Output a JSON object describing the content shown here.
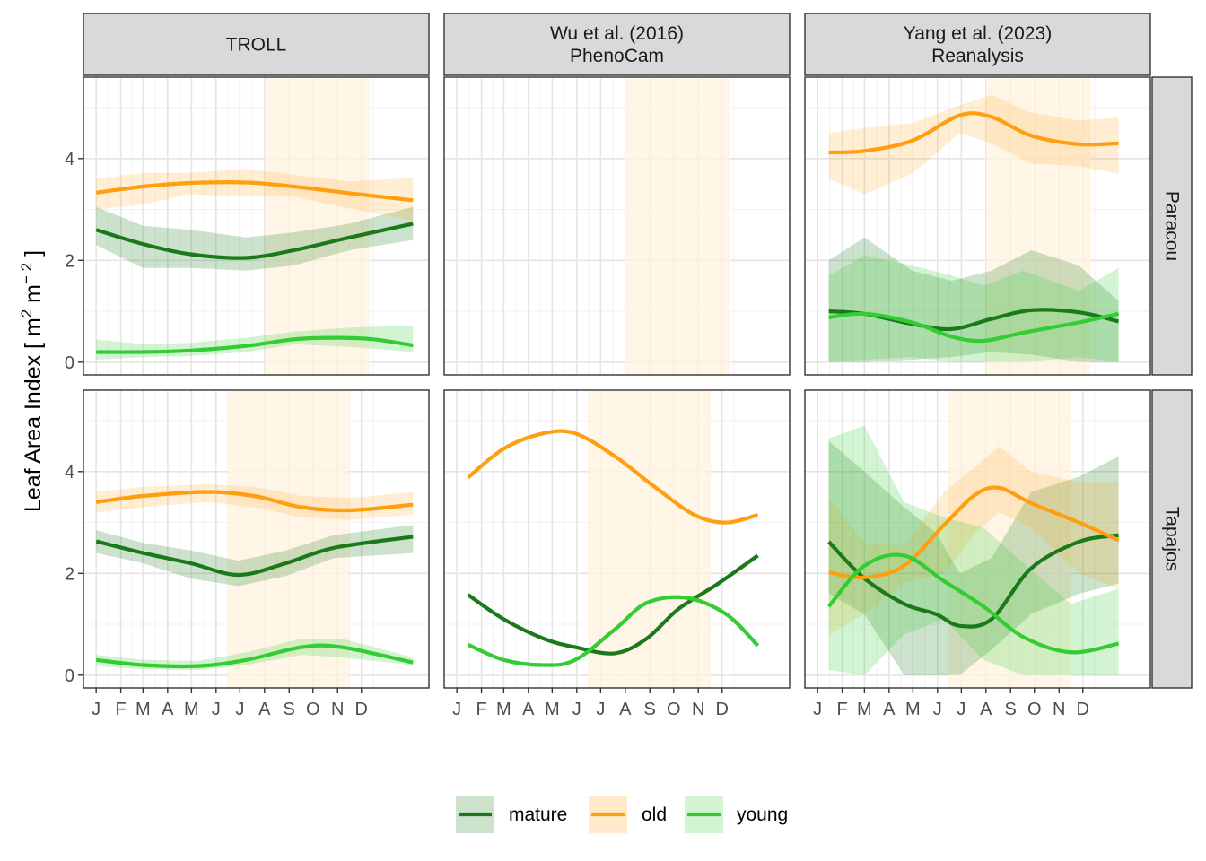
{
  "chart_data": {
    "type": "line",
    "ylabel": "Leaf Area Index [ m² m⁻² ]",
    "ylabel_parts": {
      "main": "Leaf Area Index [ m",
      "sup1": "2",
      "mid": " m",
      "sup2": "− 2",
      "end": " ]"
    },
    "xlabel": "",
    "ylim": [
      -0.25,
      5.6
    ],
    "y_ticks": [
      0,
      2,
      4
    ],
    "x_ticks": [
      "J",
      "F",
      "M",
      "A",
      "M",
      "J",
      "J",
      "A",
      "S",
      "O",
      "N",
      "D"
    ],
    "x_tick_days": [
      1,
      32,
      60,
      91,
      121,
      152,
      182,
      213,
      244,
      274,
      305,
      335
    ],
    "xlim": [
      -15,
      420
    ],
    "grid": true,
    "legend_position": "bottom",
    "columns": [
      {
        "lines": [
          "TROLL"
        ]
      },
      {
        "lines": [
          "Wu et al. (2016)",
          "PhenoCam"
        ]
      },
      {
        "lines": [
          "Yang et al. (2023)",
          "Reanalysis"
        ]
      }
    ],
    "rows": [
      "Paracou",
      "Tapajos"
    ],
    "series": [
      {
        "name": "mature",
        "color": "#1a7a1a"
      },
      {
        "name": "old",
        "color": "#ff9f0f"
      },
      {
        "name": "young",
        "color": "#33cc33"
      }
    ],
    "panels": [
      {
        "row": 0,
        "col": 0,
        "dry_season": [
          213,
          345
        ],
        "lines": {
          "old": [
            [
              1,
              3.33
            ],
            [
              60,
              3.45
            ],
            [
              120,
              3.52
            ],
            [
              190,
              3.53
            ],
            [
              250,
              3.45
            ],
            [
              320,
              3.32
            ],
            [
              400,
              3.18
            ]
          ],
          "mature": [
            [
              1,
              2.6
            ],
            [
              60,
              2.32
            ],
            [
              120,
              2.12
            ],
            [
              190,
              2.05
            ],
            [
              250,
              2.2
            ],
            [
              320,
              2.45
            ],
            [
              400,
              2.72
            ]
          ],
          "young": [
            [
              1,
              0.2
            ],
            [
              60,
              0.2
            ],
            [
              120,
              0.23
            ],
            [
              190,
              0.32
            ],
            [
              250,
              0.45
            ],
            [
              300,
              0.48
            ],
            [
              350,
              0.45
            ],
            [
              400,
              0.33
            ]
          ]
        },
        "ribbons": {
          "old": [
            [
              1,
              3.0,
              3.6
            ],
            [
              60,
              3.1,
              3.72
            ],
            [
              120,
              3.3,
              3.72
            ],
            [
              190,
              3.25,
              3.8
            ],
            [
              250,
              3.25,
              3.68
            ],
            [
              320,
              3.02,
              3.55
            ],
            [
              400,
              2.78,
              3.62
            ]
          ],
          "mature": [
            [
              1,
              2.3,
              3.05
            ],
            [
              60,
              1.85,
              2.68
            ],
            [
              120,
              1.85,
              2.6
            ],
            [
              190,
              1.8,
              2.45
            ],
            [
              250,
              1.9,
              2.55
            ],
            [
              320,
              2.2,
              2.72
            ],
            [
              400,
              2.4,
              3.05
            ]
          ],
          "young": [
            [
              1,
              0.05,
              0.45
            ],
            [
              60,
              0.1,
              0.35
            ],
            [
              120,
              0.12,
              0.38
            ],
            [
              190,
              0.2,
              0.48
            ],
            [
              250,
              0.35,
              0.6
            ],
            [
              320,
              0.3,
              0.68
            ],
            [
              400,
              0.2,
              0.72
            ]
          ]
        }
      },
      {
        "row": 0,
        "col": 1,
        "dry_season": [
          213,
          345
        ],
        "lines": {},
        "ribbons": {}
      },
      {
        "row": 0,
        "col": 2,
        "dry_season": [
          213,
          345
        ],
        "lines": {
          "old": [
            [
              15,
              4.12
            ],
            [
              60,
              4.15
            ],
            [
              120,
              4.35
            ],
            [
              180,
              4.85
            ],
            [
              220,
              4.82
            ],
            [
              270,
              4.45
            ],
            [
              330,
              4.28
            ],
            [
              380,
              4.3
            ]
          ],
          "mature": [
            [
              15,
              1.0
            ],
            [
              60,
              0.95
            ],
            [
              120,
              0.75
            ],
            [
              170,
              0.65
            ],
            [
              220,
              0.85
            ],
            [
              270,
              1.02
            ],
            [
              330,
              0.98
            ],
            [
              380,
              0.8
            ]
          ],
          "young": [
            [
              15,
              0.88
            ],
            [
              60,
              0.95
            ],
            [
              120,
              0.78
            ],
            [
              170,
              0.5
            ],
            [
              210,
              0.42
            ],
            [
              260,
              0.58
            ],
            [
              330,
              0.78
            ],
            [
              380,
              0.95
            ]
          ]
        },
        "ribbons": {
          "old": [
            [
              15,
              3.6,
              4.5
            ],
            [
              60,
              3.3,
              4.6
            ],
            [
              120,
              3.7,
              4.7
            ],
            [
              180,
              4.5,
              5.05
            ],
            [
              220,
              4.3,
              5.25
            ],
            [
              270,
              3.9,
              4.9
            ],
            [
              330,
              3.85,
              4.75
            ],
            [
              380,
              3.7,
              4.8
            ]
          ],
          "mature": [
            [
              15,
              0.0,
              2.0
            ],
            [
              60,
              0.0,
              2.45
            ],
            [
              120,
              0.05,
              1.8
            ],
            [
              170,
              0.1,
              1.6
            ],
            [
              220,
              0.2,
              1.8
            ],
            [
              270,
              0.15,
              2.2
            ],
            [
              330,
              0.0,
              1.9
            ],
            [
              380,
              0.0,
              1.2
            ]
          ],
          "young": [
            [
              15,
              0.0,
              1.7
            ],
            [
              60,
              0.05,
              2.1
            ],
            [
              120,
              0.1,
              1.9
            ],
            [
              170,
              0.0,
              1.7
            ],
            [
              210,
              0.0,
              1.5
            ],
            [
              260,
              0.0,
              1.8
            ],
            [
              330,
              0.1,
              1.4
            ],
            [
              380,
              0.0,
              1.85
            ]
          ]
        }
      },
      {
        "row": 1,
        "col": 0,
        "dry_season": [
          166,
          320
        ],
        "lines": {
          "old": [
            [
              1,
              3.4
            ],
            [
              60,
              3.52
            ],
            [
              140,
              3.6
            ],
            [
              200,
              3.52
            ],
            [
              260,
              3.3
            ],
            [
              320,
              3.24
            ],
            [
              400,
              3.35
            ]
          ],
          "mature": [
            [
              1,
              2.63
            ],
            [
              60,
              2.4
            ],
            [
              120,
              2.2
            ],
            [
              180,
              1.97
            ],
            [
              240,
              2.2
            ],
            [
              300,
              2.5
            ],
            [
              400,
              2.72
            ]
          ],
          "young": [
            [
              1,
              0.3
            ],
            [
              60,
              0.2
            ],
            [
              130,
              0.18
            ],
            [
              190,
              0.3
            ],
            [
              260,
              0.55
            ],
            [
              310,
              0.55
            ],
            [
              400,
              0.25
            ]
          ]
        },
        "ribbons": {
          "old": [
            [
              1,
              3.2,
              3.6
            ],
            [
              60,
              3.3,
              3.7
            ],
            [
              140,
              3.4,
              3.75
            ],
            [
              200,
              3.3,
              3.7
            ],
            [
              260,
              3.1,
              3.52
            ],
            [
              320,
              3.05,
              3.48
            ],
            [
              400,
              3.15,
              3.6
            ]
          ],
          "mature": [
            [
              1,
              2.4,
              2.85
            ],
            [
              60,
              2.2,
              2.6
            ],
            [
              120,
              1.9,
              2.45
            ],
            [
              180,
              1.75,
              2.25
            ],
            [
              240,
              1.95,
              2.45
            ],
            [
              300,
              2.3,
              2.75
            ],
            [
              400,
              2.4,
              2.95
            ]
          ],
          "young": [
            [
              1,
              0.18,
              0.4
            ],
            [
              60,
              0.12,
              0.3
            ],
            [
              130,
              0.1,
              0.28
            ],
            [
              190,
              0.2,
              0.45
            ],
            [
              260,
              0.4,
              0.72
            ],
            [
              310,
              0.35,
              0.72
            ],
            [
              400,
              0.2,
              0.35
            ]
          ]
        }
      },
      {
        "row": 1,
        "col": 1,
        "dry_season": [
          166,
          320
        ],
        "lines": {
          "old": [
            [
              15,
              3.88
            ],
            [
              60,
              4.45
            ],
            [
              110,
              4.75
            ],
            [
              150,
              4.75
            ],
            [
              200,
              4.3
            ],
            [
              250,
              3.7
            ],
            [
              300,
              3.15
            ],
            [
              340,
              3.0
            ],
            [
              380,
              3.15
            ]
          ],
          "mature": [
            [
              15,
              1.58
            ],
            [
              60,
              1.1
            ],
            [
              110,
              0.72
            ],
            [
              150,
              0.55
            ],
            [
              200,
              0.43
            ],
            [
              240,
              0.72
            ],
            [
              280,
              1.3
            ],
            [
              330,
              1.8
            ],
            [
              380,
              2.35
            ]
          ],
          "young": [
            [
              15,
              0.6
            ],
            [
              60,
              0.3
            ],
            [
              110,
              0.2
            ],
            [
              150,
              0.3
            ],
            [
              200,
              0.9
            ],
            [
              240,
              1.42
            ],
            [
              290,
              1.52
            ],
            [
              340,
              1.2
            ],
            [
              380,
              0.58
            ]
          ]
        },
        "ribbons": {}
      },
      {
        "row": 1,
        "col": 2,
        "dry_season": [
          166,
          320
        ],
        "lines": {
          "old": [
            [
              15,
              2.02
            ],
            [
              60,
              1.92
            ],
            [
              110,
              2.15
            ],
            [
              160,
              2.95
            ],
            [
              200,
              3.55
            ],
            [
              230,
              3.68
            ],
            [
              270,
              3.38
            ],
            [
              330,
              3.0
            ],
            [
              380,
              2.65
            ]
          ],
          "mature": [
            [
              15,
              2.62
            ],
            [
              60,
              1.9
            ],
            [
              110,
              1.4
            ],
            [
              150,
              1.2
            ],
            [
              180,
              0.97
            ],
            [
              220,
              1.1
            ],
            [
              270,
              2.1
            ],
            [
              330,
              2.62
            ],
            [
              380,
              2.75
            ]
          ],
          "young": [
            [
              15,
              1.35
            ],
            [
              60,
              2.15
            ],
            [
              110,
              2.35
            ],
            [
              160,
              1.85
            ],
            [
              210,
              1.35
            ],
            [
              260,
              0.75
            ],
            [
              320,
              0.45
            ],
            [
              380,
              0.62
            ]
          ]
        },
        "ribbons": {
          "old": [
            [
              15,
              0.8,
              3.5
            ],
            [
              60,
              1.2,
              2.6
            ],
            [
              110,
              1.8,
              2.55
            ],
            [
              160,
              2.0,
              3.6
            ],
            [
              200,
              2.8,
              4.1
            ],
            [
              230,
              3.2,
              4.5
            ],
            [
              270,
              2.9,
              4.0
            ],
            [
              330,
              2.0,
              3.8
            ],
            [
              380,
              1.7,
              3.8
            ]
          ],
          "mature": [
            [
              15,
              1.6,
              4.6
            ],
            [
              60,
              1.2,
              4.0
            ],
            [
              110,
              0.0,
              3.3
            ],
            [
              150,
              0.0,
              2.8
            ],
            [
              180,
              0.0,
              2.0
            ],
            [
              220,
              0.5,
              2.3
            ],
            [
              270,
              1.2,
              3.6
            ],
            [
              330,
              1.6,
              3.9
            ],
            [
              380,
              1.8,
              4.3
            ]
          ],
          "young": [
            [
              15,
              0.1,
              4.65
            ],
            [
              60,
              0.0,
              4.9
            ],
            [
              110,
              0.8,
              3.4
            ],
            [
              160,
              1.1,
              3.1
            ],
            [
              210,
              0.3,
              2.9
            ],
            [
              260,
              0.0,
              2.2
            ],
            [
              320,
              0.0,
              1.4
            ],
            [
              380,
              0.0,
              1.7
            ]
          ]
        }
      }
    ]
  }
}
